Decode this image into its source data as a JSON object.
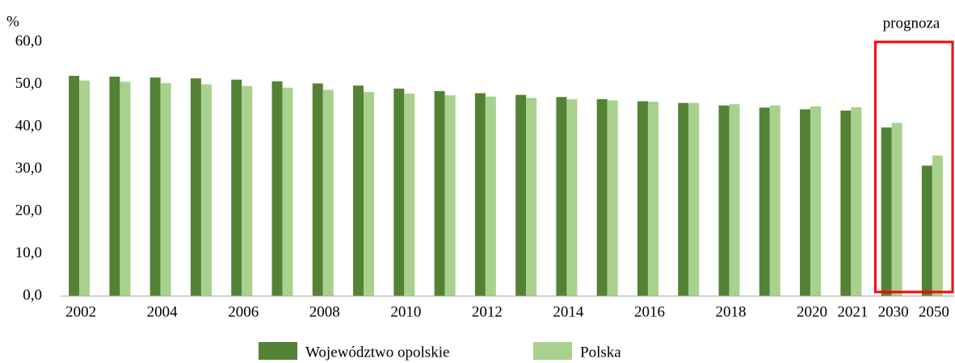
{
  "chart_data": {
    "type": "bar",
    "unit_label": "%",
    "annotation": "prognoza",
    "categories": [
      "2002",
      null,
      "2004",
      null,
      "2006",
      null,
      "2008",
      null,
      "2010",
      null,
      "2012",
      null,
      "2014",
      null,
      "2016",
      null,
      "2018",
      null,
      "2020",
      "2021",
      "2030",
      "2050"
    ],
    "series": [
      {
        "name": "Województwo opolskie",
        "color": "#548235",
        "values": [
          52.0,
          51.8,
          51.6,
          51.4,
          51.1,
          50.7,
          50.2,
          49.7,
          49.0,
          48.4,
          47.9,
          47.5,
          47.0,
          46.5,
          46.0,
          45.6,
          45.0,
          44.5,
          44.1,
          43.8,
          39.8,
          30.8
        ]
      },
      {
        "name": "Polska",
        "color": "#a9d18e",
        "values": [
          50.9,
          50.6,
          50.3,
          50.0,
          49.6,
          49.2,
          48.7,
          48.2,
          47.8,
          47.4,
          47.1,
          46.8,
          46.5,
          46.2,
          45.9,
          45.6,
          45.3,
          45.0,
          44.8,
          44.6,
          40.9,
          33.2
        ]
      }
    ],
    "ylim": [
      0,
      60
    ],
    "yticks": [
      {
        "value": 0,
        "label": "0,0"
      },
      {
        "value": 10,
        "label": "10,0"
      },
      {
        "value": 20,
        "label": "20,0"
      },
      {
        "value": 30,
        "label": "30,0"
      },
      {
        "value": 40,
        "label": "40,0"
      },
      {
        "value": 50,
        "label": "50,0"
      },
      {
        "value": 60,
        "label": "60,0"
      }
    ],
    "grid": false
  }
}
